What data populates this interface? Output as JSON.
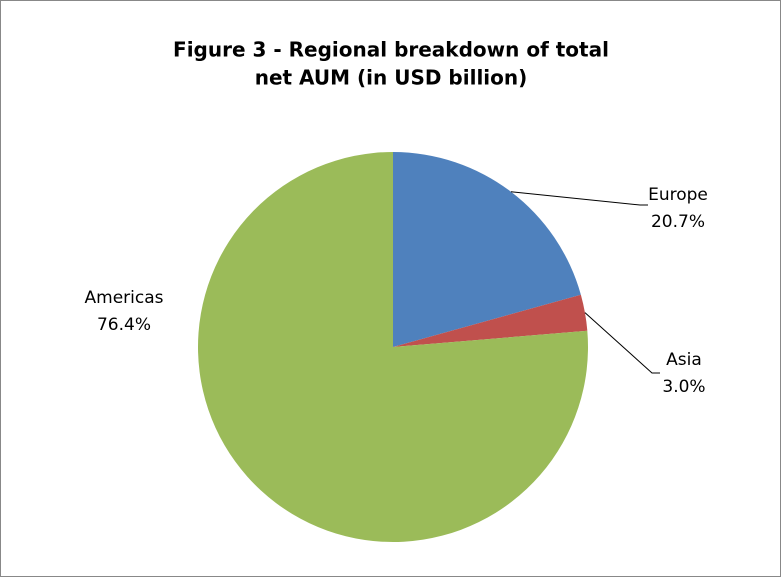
{
  "chart_data": {
    "type": "pie",
    "title": [
      "Figure 3 - Regional breakdown of total",
      "net AUM  (in USD billion)"
    ],
    "categories": [
      "Europe",
      "Asia",
      "Americas"
    ],
    "values": [
      20.7,
      3.0,
      76.4
    ],
    "value_labels": [
      "20.7%",
      "3.0%",
      "76.4%"
    ],
    "colors": [
      "#4f81bd",
      "#c0504d",
      "#9bbb59"
    ]
  }
}
